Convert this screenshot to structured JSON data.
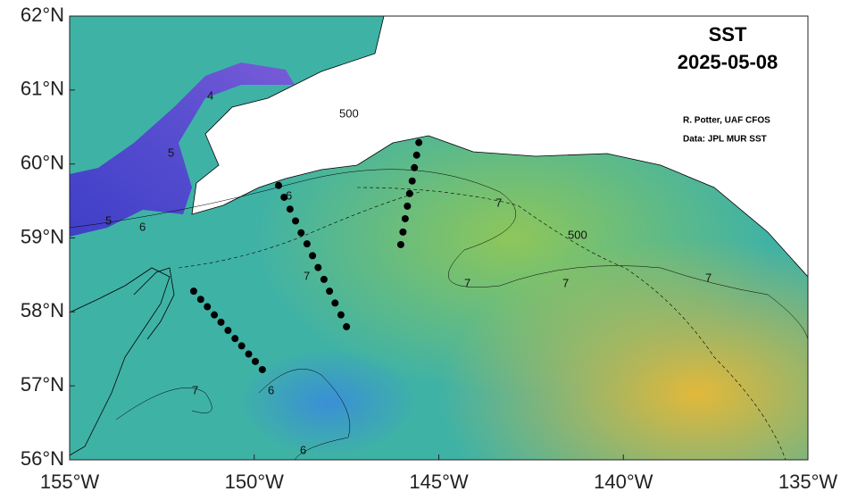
{
  "title": "SST",
  "date": "2025-05-08",
  "credits": [
    "R. Potter, UAF CFOS",
    "Data: JPL MUR SST"
  ],
  "map": {
    "xlim": [
      -155,
      -135
    ],
    "ylim": [
      56,
      62
    ],
    "xticks": [
      {
        "value": -155,
        "label": "155°W"
      },
      {
        "value": -150,
        "label": "150°W"
      },
      {
        "value": -145,
        "label": "145°W"
      },
      {
        "value": -140,
        "label": "140°W"
      },
      {
        "value": -135,
        "label": "135°W"
      }
    ],
    "yticks": [
      {
        "value": 56,
        "label": "56°N"
      },
      {
        "value": 57,
        "label": "57°N"
      },
      {
        "value": 58,
        "label": "58°N"
      },
      {
        "value": 59,
        "label": "59°N"
      },
      {
        "value": 60,
        "label": "60°N"
      },
      {
        "value": 61,
        "label": "61°N"
      },
      {
        "value": 62,
        "label": "62°N"
      }
    ],
    "stations": [
      {
        "lon": [
          -151.64,
          -151.45,
          -151.27,
          -151.08,
          -150.9,
          -150.71,
          -150.52,
          -150.34,
          -150.15,
          -149.97,
          -149.78
        ],
        "lat": [
          58.28,
          58.17,
          58.07,
          57.96,
          57.86,
          57.75,
          57.64,
          57.54,
          57.43,
          57.33,
          57.22
        ]
      },
      {
        "lon": [
          -149.34,
          -149.19,
          -149.03,
          -148.88,
          -148.73,
          -148.57,
          -148.42,
          -148.27,
          -148.11,
          -147.96,
          -147.81,
          -147.65,
          -147.5
        ],
        "lat": [
          59.71,
          59.55,
          59.39,
          59.23,
          59.07,
          58.92,
          58.76,
          58.6,
          58.44,
          58.28,
          58.12,
          57.96,
          57.8
        ]
      },
      {
        "lon": [
          -145.54,
          -145.6,
          -145.66,
          -145.72,
          -145.79,
          -145.85,
          -145.91,
          -145.97,
          -146.03
        ],
        "lat": [
          60.29,
          60.12,
          59.95,
          59.77,
          59.6,
          59.43,
          59.26,
          59.08,
          58.91
        ]
      }
    ],
    "contour_labels": [
      "4",
      "5",
      "6",
      "5",
      "6",
      "7",
      "7",
      "7",
      "7",
      "500",
      "500",
      "6",
      "7",
      "7",
      "6"
    ]
  }
}
